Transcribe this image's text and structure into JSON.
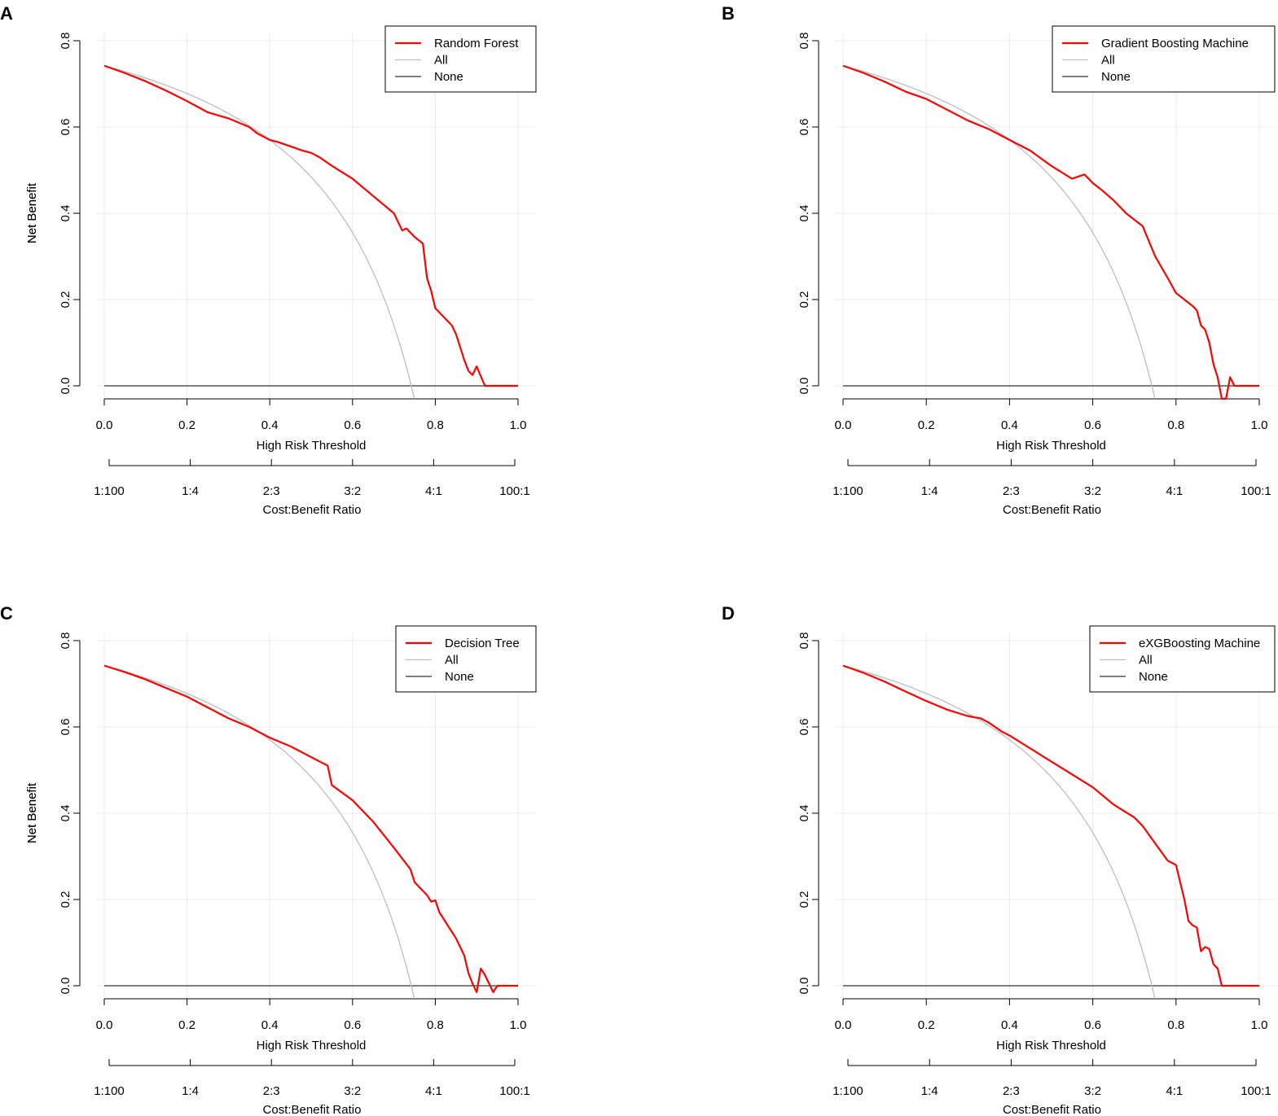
{
  "chart_data": [
    {
      "panel": "A",
      "type": "line",
      "title": "",
      "xlabel": "High Risk Threshold",
      "ylabel": "Net Benefit",
      "x2label": "Cost:Benefit Ratio",
      "xlim": [
        0,
        1
      ],
      "ylim": [
        -0.03,
        0.8
      ],
      "xticks": [
        "0.0",
        "0.2",
        "0.4",
        "0.6",
        "0.8",
        "1.0"
      ],
      "yticks": [
        "0.0",
        "0.2",
        "0.4",
        "0.6",
        "0.8"
      ],
      "x2ticks": [
        "1:100",
        "1:4",
        "2:3",
        "3:2",
        "4:1",
        "100:1"
      ],
      "grid": true,
      "legend_position": "top-right",
      "prevalence": 0.742,
      "series": [
        {
          "name": "Random Forest",
          "color": "#ff0000",
          "x": [
            0,
            0.05,
            0.1,
            0.15,
            0.2,
            0.25,
            0.3,
            0.35,
            0.37,
            0.4,
            0.42,
            0.45,
            0.48,
            0.5,
            0.52,
            0.55,
            0.6,
            0.65,
            0.7,
            0.72,
            0.73,
            0.74,
            0.75,
            0.77,
            0.78,
            0.79,
            0.8,
            0.82,
            0.83,
            0.84,
            0.85,
            0.87,
            0.88,
            0.89,
            0.9,
            0.92,
            0.95,
            1.0
          ],
          "y": [
            0.742,
            0.725,
            0.706,
            0.684,
            0.66,
            0.634,
            0.62,
            0.6,
            0.585,
            0.57,
            0.565,
            0.555,
            0.545,
            0.54,
            0.53,
            0.51,
            0.48,
            0.44,
            0.4,
            0.36,
            0.365,
            0.355,
            0.345,
            0.33,
            0.25,
            0.22,
            0.18,
            0.16,
            0.15,
            0.14,
            0.12,
            0.06,
            0.035,
            0.025,
            0.045,
            0.0,
            0.0,
            0.0
          ]
        },
        {
          "name": "All",
          "color": "#bebebe"
        },
        {
          "name": "None",
          "color": "#555555"
        }
      ]
    },
    {
      "panel": "B",
      "type": "line",
      "title": "",
      "xlabel": "High Risk Threshold",
      "ylabel": "Net Benefit",
      "x2label": "Cost:Benefit Ratio",
      "xlim": [
        0,
        1
      ],
      "ylim": [
        -0.03,
        0.8
      ],
      "xticks": [
        "0.0",
        "0.2",
        "0.4",
        "0.6",
        "0.8",
        "1.0"
      ],
      "yticks": [
        "0.0",
        "0.2",
        "0.4",
        "0.6",
        "0.8"
      ],
      "x2ticks": [
        "1:100",
        "1:4",
        "2:3",
        "3:2",
        "4:1",
        "100:1"
      ],
      "grid": true,
      "legend_position": "top-right",
      "prevalence": 0.742,
      "series": [
        {
          "name": "Gradient Boosting Machine",
          "color": "#ff0000",
          "x": [
            0,
            0.05,
            0.1,
            0.15,
            0.2,
            0.25,
            0.3,
            0.35,
            0.4,
            0.45,
            0.5,
            0.55,
            0.58,
            0.6,
            0.62,
            0.65,
            0.68,
            0.7,
            0.72,
            0.75,
            0.78,
            0.8,
            0.82,
            0.84,
            0.85,
            0.86,
            0.87,
            0.88,
            0.89,
            0.9,
            0.91,
            0.92,
            0.93,
            0.94,
            0.95,
            0.97,
            1.0
          ],
          "y": [
            0.742,
            0.725,
            0.705,
            0.682,
            0.665,
            0.64,
            0.615,
            0.595,
            0.57,
            0.545,
            0.51,
            0.48,
            0.49,
            0.47,
            0.455,
            0.43,
            0.4,
            0.385,
            0.37,
            0.3,
            0.25,
            0.215,
            0.2,
            0.185,
            0.175,
            0.14,
            0.13,
            0.1,
            0.05,
            0.02,
            -0.03,
            -0.03,
            0.02,
            0.0,
            0.0,
            0.0,
            0.0
          ]
        },
        {
          "name": "All",
          "color": "#bebebe"
        },
        {
          "name": "None",
          "color": "#555555"
        }
      ]
    },
    {
      "panel": "C",
      "type": "line",
      "title": "",
      "xlabel": "High Risk Threshold",
      "ylabel": "Net Benefit",
      "x2label": "Cost:Benefit Ratio",
      "xlim": [
        0,
        1
      ],
      "ylim": [
        -0.03,
        0.8
      ],
      "xticks": [
        "0.0",
        "0.2",
        "0.4",
        "0.6",
        "0.8",
        "1.0"
      ],
      "yticks": [
        "0.0",
        "0.2",
        "0.4",
        "0.6",
        "0.8"
      ],
      "x2ticks": [
        "1:100",
        "1:4",
        "2:3",
        "3:2",
        "4:1",
        "100:1"
      ],
      "grid": true,
      "legend_position": "top-right",
      "prevalence": 0.742,
      "series": [
        {
          "name": "Decision Tree",
          "color": "#ff0000",
          "x": [
            0,
            0.05,
            0.1,
            0.15,
            0.2,
            0.25,
            0.27,
            0.28,
            0.3,
            0.35,
            0.38,
            0.4,
            0.45,
            0.5,
            0.54,
            0.55,
            0.6,
            0.65,
            0.7,
            0.74,
            0.75,
            0.78,
            0.79,
            0.8,
            0.81,
            0.85,
            0.87,
            0.88,
            0.89,
            0.9,
            0.91,
            0.92,
            0.93,
            0.94,
            0.95,
            1.0
          ],
          "y": [
            0.742,
            0.727,
            0.71,
            0.69,
            0.67,
            0.645,
            0.635,
            0.63,
            0.62,
            0.6,
            0.585,
            0.575,
            0.555,
            0.53,
            0.51,
            0.465,
            0.43,
            0.38,
            0.32,
            0.27,
            0.24,
            0.21,
            0.195,
            0.198,
            0.17,
            0.11,
            0.07,
            0.03,
            0.005,
            -0.015,
            0.04,
            0.025,
            0.005,
            -0.015,
            0.0,
            0.0
          ]
        },
        {
          "name": "All",
          "color": "#bebebe"
        },
        {
          "name": "None",
          "color": "#555555"
        }
      ]
    },
    {
      "panel": "D",
      "type": "line",
      "title": "",
      "xlabel": "High Risk Threshold",
      "ylabel": "Net Benefit",
      "x2label": "Cost:Benefit Ratio",
      "xlim": [
        0,
        1
      ],
      "ylim": [
        -0.03,
        0.8
      ],
      "xticks": [
        "0.0",
        "0.2",
        "0.4",
        "0.6",
        "0.8",
        "1.0"
      ],
      "yticks": [
        "0.0",
        "0.2",
        "0.4",
        "0.6",
        "0.8"
      ],
      "x2ticks": [
        "1:100",
        "1:4",
        "2:3",
        "3:2",
        "4:1",
        "100:1"
      ],
      "grid": true,
      "legend_position": "top-right",
      "prevalence": 0.742,
      "series": [
        {
          "name": "eXGBoosting Machine",
          "color": "#ff0000",
          "x": [
            0,
            0.05,
            0.1,
            0.15,
            0.2,
            0.25,
            0.3,
            0.33,
            0.35,
            0.38,
            0.4,
            0.45,
            0.5,
            0.55,
            0.6,
            0.65,
            0.7,
            0.72,
            0.75,
            0.78,
            0.8,
            0.82,
            0.83,
            0.84,
            0.85,
            0.86,
            0.87,
            0.88,
            0.89,
            0.9,
            0.91,
            0.92,
            0.95,
            1.0
          ],
          "y": [
            0.742,
            0.725,
            0.705,
            0.682,
            0.66,
            0.64,
            0.625,
            0.62,
            0.61,
            0.59,
            0.58,
            0.55,
            0.52,
            0.49,
            0.46,
            0.42,
            0.39,
            0.37,
            0.33,
            0.29,
            0.28,
            0.2,
            0.15,
            0.14,
            0.135,
            0.08,
            0.09,
            0.085,
            0.05,
            0.04,
            0.0,
            0.0,
            0.0,
            0.0
          ]
        },
        {
          "name": "All",
          "color": "#bebebe"
        },
        {
          "name": "None",
          "color": "#555555"
        }
      ]
    }
  ]
}
